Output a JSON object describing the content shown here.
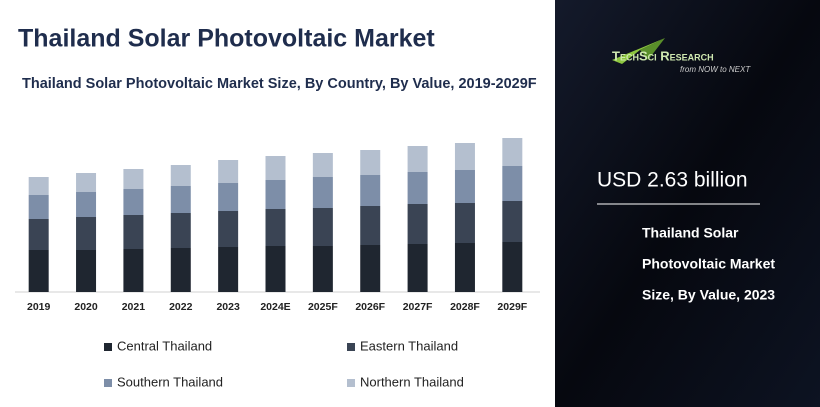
{
  "title": "Thailand Solar Photovoltaic Market",
  "chart_data": {
    "type": "bar",
    "stacked": true,
    "title": "Thailand Solar Photovoltaic Market Size, By Country, By Value, 2019-2029F",
    "categories": [
      "2019",
      "2020",
      "2021",
      "2022",
      "2023",
      "2024E",
      "2025F",
      "2026F",
      "2027F",
      "2028F",
      "2029F"
    ],
    "series": [
      {
        "name": "Central Thailand",
        "color": "#1f2630",
        "values": [
          42,
          42,
          43,
          44,
          45,
          46,
          46,
          47,
          48,
          49,
          50
        ]
      },
      {
        "name": "Eastern Thailand",
        "color": "#3a4454",
        "values": [
          31,
          33,
          34,
          35,
          36,
          37,
          38,
          39,
          40,
          40,
          41
        ]
      },
      {
        "name": "Southern Thailand",
        "color": "#7d8ea8",
        "values": [
          24,
          25,
          26,
          27,
          28,
          29,
          31,
          31,
          32,
          33,
          35
        ]
      },
      {
        "name": "Northern Thailand",
        "color": "#b4bfcf",
        "values": [
          18,
          19,
          20,
          21,
          23,
          24,
          24,
          25,
          26,
          27,
          28
        ]
      }
    ]
  },
  "panel": {
    "logo": "TechSci Research",
    "tagline": "from NOW to NEXT",
    "highlight": "USD 2.63 billion",
    "caption_lines": [
      "Thailand Solar",
      "Photovoltaic Market",
      "Size, By Value, 2023"
    ]
  }
}
